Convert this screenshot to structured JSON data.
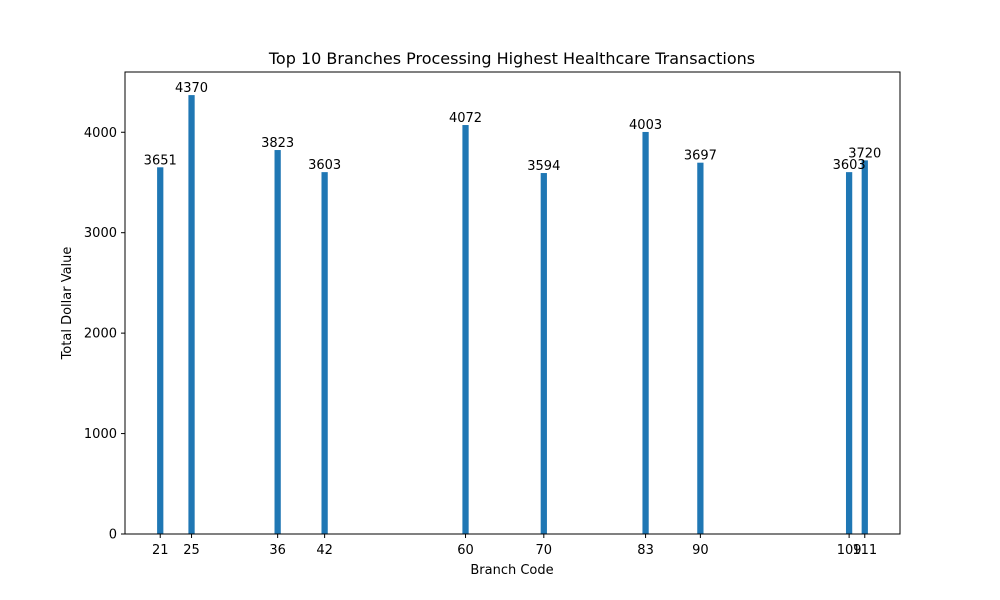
{
  "chart_data": {
    "type": "bar",
    "title": "Top 10 Branches Processing Highest Healthcare Transactions",
    "xlabel": "Branch Code",
    "ylabel": "Total Dollar Value",
    "x": [
      21,
      25,
      36,
      42,
      60,
      70,
      83,
      90,
      109,
      111
    ],
    "tick_labels": [
      "21",
      "25",
      "36",
      "42",
      "60",
      "70",
      "83",
      "90",
      "109",
      "111"
    ],
    "values": [
      3651,
      4370,
      3823,
      3603,
      4072,
      3594,
      4003,
      3697,
      3603,
      3720
    ],
    "value_labels": [
      "3651",
      "4370",
      "3823",
      "3603",
      "4072",
      "3594",
      "4003",
      "3697",
      "3603",
      "3720"
    ],
    "xlim": [
      16.5,
      115.5
    ],
    "ylim": [
      0,
      4600
    ],
    "yticks": [
      0,
      1000,
      2000,
      3000,
      4000
    ],
    "ytick_labels": [
      "0",
      "1000",
      "2000",
      "3000",
      "4000"
    ],
    "bar_width": 0.8,
    "bar_color": "#1f77b4",
    "grid": false,
    "legend": "none"
  }
}
